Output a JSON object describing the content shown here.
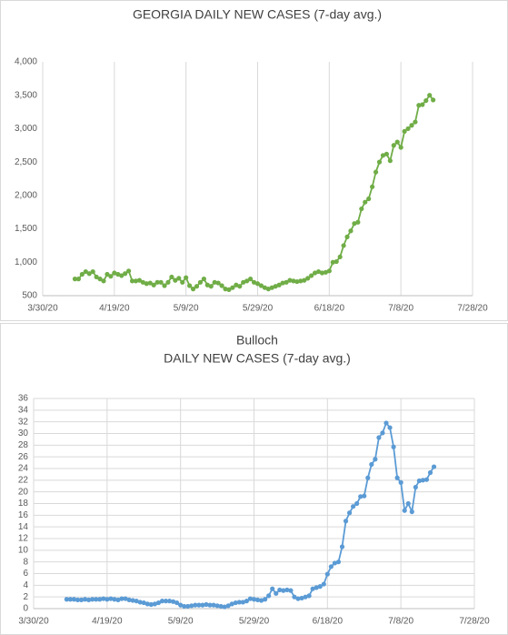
{
  "chart_data": [
    {
      "type": "line",
      "title": "GEORGIA DAILY NEW CASES (7-day avg.)",
      "x": [
        "4/8/20",
        "4/9/20",
        "4/10/20",
        "4/11/20",
        "4/12/20",
        "4/13/20",
        "4/14/20",
        "4/15/20",
        "4/16/20",
        "4/17/20",
        "4/18/20",
        "4/19/20",
        "4/20/20",
        "4/21/20",
        "4/22/20",
        "4/23/20",
        "4/24/20",
        "4/25/20",
        "4/26/20",
        "4/27/20",
        "4/28/20",
        "4/29/20",
        "4/30/20",
        "5/1/20",
        "5/2/20",
        "5/3/20",
        "5/4/20",
        "5/5/20",
        "5/6/20",
        "5/7/20",
        "5/8/20",
        "5/9/20",
        "5/10/20",
        "5/11/20",
        "5/12/20",
        "5/13/20",
        "5/14/20",
        "5/15/20",
        "5/16/20",
        "5/17/20",
        "5/18/20",
        "5/19/20",
        "5/20/20",
        "5/21/20",
        "5/22/20",
        "5/23/20",
        "5/24/20",
        "5/25/20",
        "5/26/20",
        "5/27/20",
        "5/28/20",
        "5/29/20",
        "5/30/20",
        "5/31/20",
        "6/1/20",
        "6/2/20",
        "6/3/20",
        "6/4/20",
        "6/5/20",
        "6/6/20",
        "6/7/20",
        "6/8/20",
        "6/9/20",
        "6/10/20",
        "6/11/20",
        "6/12/20",
        "6/13/20",
        "6/14/20",
        "6/15/20",
        "6/16/20",
        "6/17/20",
        "6/18/20",
        "6/19/20",
        "6/20/20",
        "6/21/20",
        "6/22/20",
        "6/23/20",
        "6/24/20",
        "6/25/20",
        "6/26/20",
        "6/27/20",
        "6/28/20",
        "6/29/20",
        "6/30/20",
        "7/1/20",
        "7/2/20",
        "7/3/20",
        "7/4/20",
        "7/5/20",
        "7/6/20",
        "7/7/20",
        "7/8/20",
        "7/9/20",
        "7/10/20",
        "7/11/20",
        "7/12/20",
        "7/13/20",
        "7/14/20",
        "7/15/20",
        "7/16/20",
        "7/17/20"
      ],
      "series": [
        {
          "color": "#70ad47",
          "values": [
            750,
            750,
            820,
            860,
            830,
            860,
            780,
            750,
            720,
            820,
            790,
            840,
            820,
            800,
            830,
            870,
            720,
            720,
            730,
            700,
            680,
            690,
            660,
            700,
            700,
            650,
            700,
            780,
            730,
            760,
            700,
            770,
            650,
            600,
            640,
            700,
            750,
            660,
            640,
            700,
            690,
            650,
            600,
            590,
            620,
            660,
            640,
            700,
            720,
            750,
            700,
            680,
            650,
            620,
            600,
            620,
            640,
            660,
            690,
            700,
            730,
            720,
            710,
            720,
            730,
            760,
            800,
            840,
            860,
            840,
            850,
            870,
            1000,
            1010,
            1080,
            1250,
            1380,
            1470,
            1580,
            1600,
            1800,
            1900,
            1950,
            2130,
            2350,
            2500,
            2600,
            2620,
            2520,
            2750,
            2800,
            2720,
            2960,
            3000,
            3050,
            3100,
            3350,
            3360,
            3420,
            3500,
            3430
          ]
        }
      ],
      "xlim": [
        "3/30/20",
        "7/28/20"
      ],
      "xticks": [
        "3/30/20",
        "4/19/20",
        "5/9/20",
        "5/29/20",
        "6/18/20",
        "7/8/20",
        "7/28/20"
      ],
      "ylim": [
        500,
        4000
      ],
      "yticks": [
        500,
        {
          "value": 1000,
          "label": "1,000"
        },
        {
          "value": 1500,
          "label": "1,500"
        },
        {
          "value": 2000,
          "label": "2,000"
        },
        {
          "value": 2500,
          "label": "2,500"
        },
        {
          "value": 3000,
          "label": "3,000"
        },
        {
          "value": 3500,
          "label": "3,500"
        },
        {
          "value": 4000,
          "label": "4,000"
        }
      ],
      "xgrid": true,
      "ygrid": false
    },
    {
      "type": "line",
      "title": "Bulloch",
      "subtitle": "DAILY NEW CASES (7-day avg.)",
      "x": [
        "4/8/20",
        "4/9/20",
        "4/10/20",
        "4/11/20",
        "4/12/20",
        "4/13/20",
        "4/14/20",
        "4/15/20",
        "4/16/20",
        "4/17/20",
        "4/18/20",
        "4/19/20",
        "4/20/20",
        "4/21/20",
        "4/22/20",
        "4/23/20",
        "4/24/20",
        "4/25/20",
        "4/26/20",
        "4/27/20",
        "4/28/20",
        "4/29/20",
        "4/30/20",
        "5/1/20",
        "5/2/20",
        "5/3/20",
        "5/4/20",
        "5/5/20",
        "5/6/20",
        "5/7/20",
        "5/8/20",
        "5/9/20",
        "5/10/20",
        "5/11/20",
        "5/12/20",
        "5/13/20",
        "5/14/20",
        "5/15/20",
        "5/16/20",
        "5/17/20",
        "5/18/20",
        "5/19/20",
        "5/20/20",
        "5/21/20",
        "5/22/20",
        "5/23/20",
        "5/24/20",
        "5/25/20",
        "5/26/20",
        "5/27/20",
        "5/28/20",
        "5/29/20",
        "5/30/20",
        "5/31/20",
        "6/1/20",
        "6/2/20",
        "6/3/20",
        "6/4/20",
        "6/5/20",
        "6/6/20",
        "6/7/20",
        "6/8/20",
        "6/9/20",
        "6/10/20",
        "6/11/20",
        "6/12/20",
        "6/13/20",
        "6/14/20",
        "6/15/20",
        "6/16/20",
        "6/17/20",
        "6/18/20",
        "6/19/20",
        "6/20/20",
        "6/21/20",
        "6/22/20",
        "6/23/20",
        "6/24/20",
        "6/25/20",
        "6/26/20",
        "6/27/20",
        "6/28/20",
        "6/29/20",
        "6/30/20",
        "7/1/20",
        "7/2/20",
        "7/3/20",
        "7/4/20",
        "7/5/20",
        "7/6/20",
        "7/7/20",
        "7/8/20",
        "7/9/20",
        "7/10/20",
        "7/11/20",
        "7/12/20",
        "7/13/20",
        "7/14/20",
        "7/15/20",
        "7/16/20",
        "7/17/20"
      ],
      "series": [
        {
          "color": "#5b9bd5",
          "values": [
            1.6,
            1.6,
            1.6,
            1.5,
            1.5,
            1.6,
            1.5,
            1.6,
            1.6,
            1.6,
            1.7,
            1.6,
            1.7,
            1.6,
            1.5,
            1.7,
            1.7,
            1.5,
            1.4,
            1.3,
            1.1,
            1.0,
            0.8,
            0.7,
            0.8,
            1.0,
            1.3,
            1.3,
            1.3,
            1.2,
            1.0,
            0.6,
            0.4,
            0.4,
            0.5,
            0.6,
            0.6,
            0.6,
            0.7,
            0.6,
            0.6,
            0.5,
            0.4,
            0.3,
            0.5,
            0.8,
            1.0,
            1.1,
            1.1,
            1.3,
            1.7,
            1.6,
            1.5,
            1.4,
            1.6,
            2.2,
            3.4,
            2.6,
            3.2,
            3.1,
            3.2,
            3.1,
            2.0,
            1.7,
            1.8,
            2.0,
            2.2,
            3.4,
            3.6,
            3.8,
            4.2,
            5.9,
            7.2,
            7.8,
            8.0,
            10.6,
            15.0,
            16.4,
            17.5,
            18.0,
            19.2,
            19.3,
            22.4,
            24.7,
            25.6,
            29.3,
            30.1,
            31.8,
            31.0,
            27.7,
            22.4,
            21.6,
            16.8,
            18.0,
            16.6,
            20.8,
            21.9,
            22.0,
            22.1,
            23.3,
            24.3
          ]
        }
      ],
      "xlim": [
        "3/30/20",
        "7/28/20"
      ],
      "xticks": [
        "3/30/20",
        "4/19/20",
        "5/9/20",
        "5/29/20",
        "6/18/20",
        "7/8/20",
        "7/28/20"
      ],
      "ylim": [
        0,
        36
      ],
      "yticks": [
        0,
        2,
        4,
        6,
        8,
        10,
        12,
        14,
        16,
        18,
        20,
        22,
        24,
        26,
        28,
        30,
        32,
        34,
        36
      ],
      "xgrid": true,
      "ygrid": true
    }
  ]
}
